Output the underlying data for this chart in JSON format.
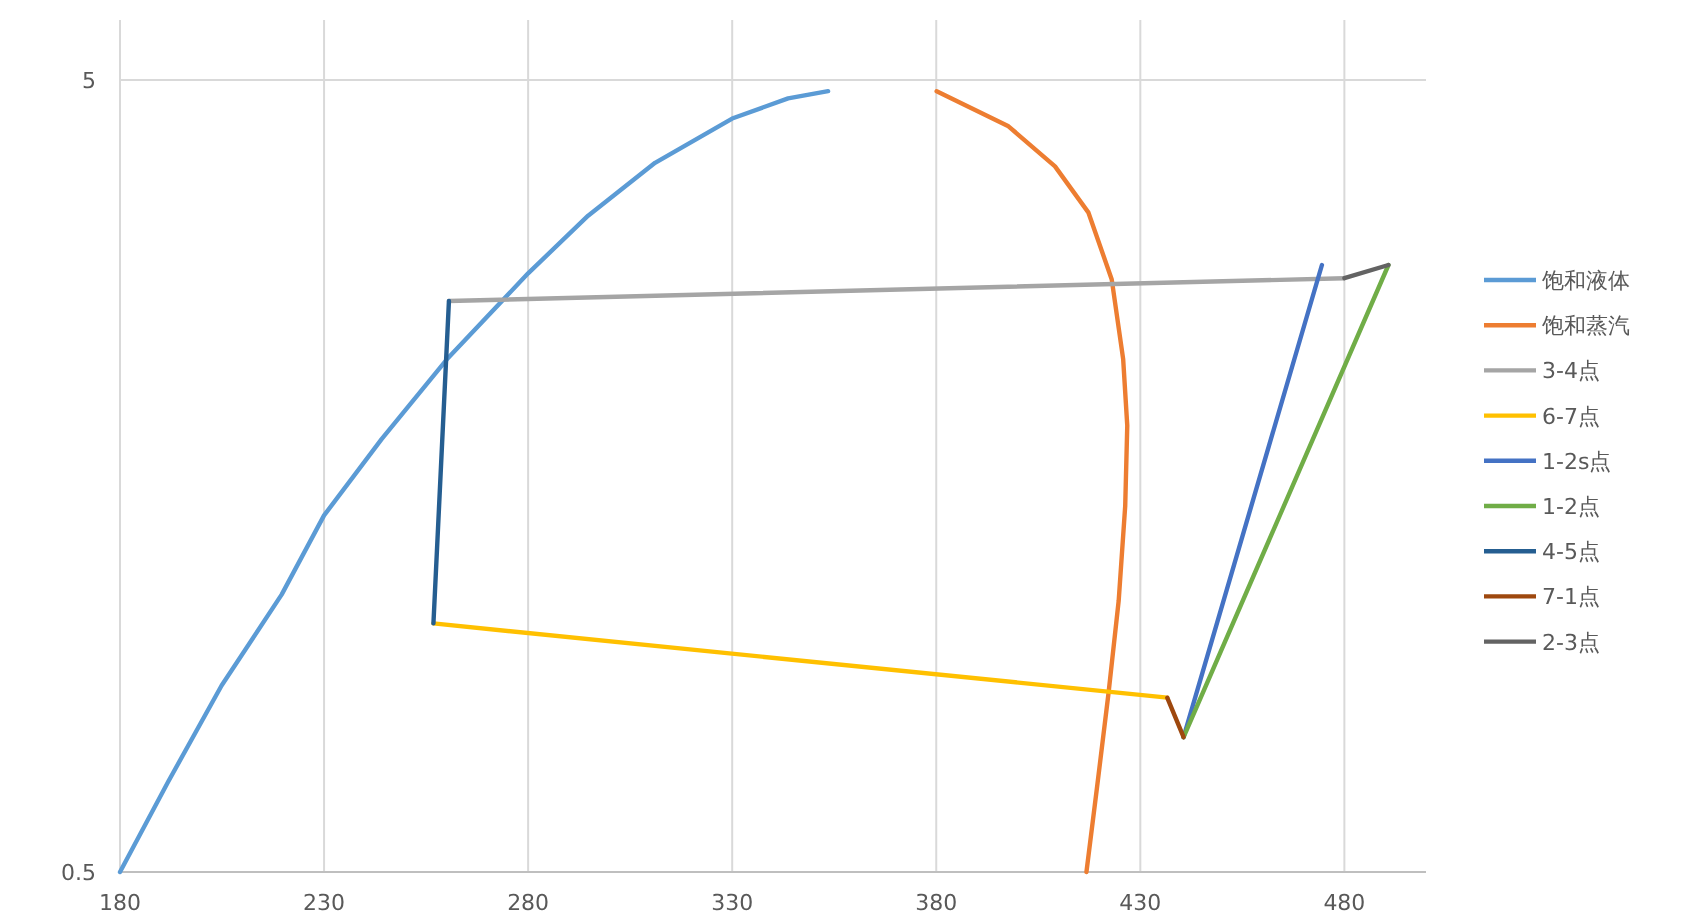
{
  "chart_data": {
    "type": "line",
    "log": "y",
    "xlim": [
      180,
      500
    ],
    "ylim": [
      0.5,
      5
    ],
    "xticks": [
      180,
      230,
      280,
      330,
      380,
      430,
      480
    ],
    "yticks": [
      0.5,
      5
    ],
    "grid": true,
    "legend": "right",
    "marker": "none",
    "line_style": "solid",
    "series": [
      {
        "name": "饱和液体",
        "color": "#5b9bd5",
        "x": [
          180,
          191.8,
          204.9,
          219.6,
          230,
          244.1,
          260.1,
          280,
          294.7,
          311.1,
          330,
          343.7,
          353.5
        ],
        "values": [
          0.5,
          0.65,
          0.86,
          1.12,
          1.41,
          1.76,
          2.22,
          2.85,
          3.37,
          3.93,
          4.47,
          4.74,
          4.84
        ]
      },
      {
        "name": "饱和蒸汽",
        "color": "#ed7d31",
        "x": [
          380.1,
          397.7,
          409.1,
          417.3,
          423,
          425.8,
          426.8,
          426.3,
          424.7,
          422.2,
          419.4,
          416.8
        ],
        "values": [
          4.84,
          4.37,
          3.89,
          3.4,
          2.8,
          2.22,
          1.83,
          1.45,
          1.1,
          0.84,
          0.64,
          0.5
        ]
      },
      {
        "name": "3-4点",
        "color": "#a5a5a5",
        "x": [
          480,
          260.6
        ],
        "values": [
          2.81,
          2.63
        ]
      },
      {
        "name": "6-7点",
        "color": "#ffc000",
        "x": [
          256.8,
          436.6
        ],
        "values": [
          1.03,
          0.83
        ]
      },
      {
        "name": "1-2s点",
        "color": "#4472c4",
        "x": [
          440.6,
          474.5
        ],
        "values": [
          0.74,
          2.92
        ]
      },
      {
        "name": "1-2点",
        "color": "#70ad47",
        "x": [
          440.6,
          490.8
        ],
        "values": [
          0.74,
          2.92
        ]
      },
      {
        "name": "4-5点",
        "color": "#255e91",
        "x": [
          260.6,
          256.8
        ],
        "values": [
          2.63,
          1.03
        ]
      },
      {
        "name": "7-1点",
        "color": "#9e480e",
        "x": [
          436.6,
          440.6
        ],
        "values": [
          0.83,
          0.74
        ]
      },
      {
        "name": "2-3点",
        "color": "#636363",
        "x": [
          490.8,
          480
        ],
        "values": [
          2.92,
          2.81
        ]
      }
    ]
  }
}
